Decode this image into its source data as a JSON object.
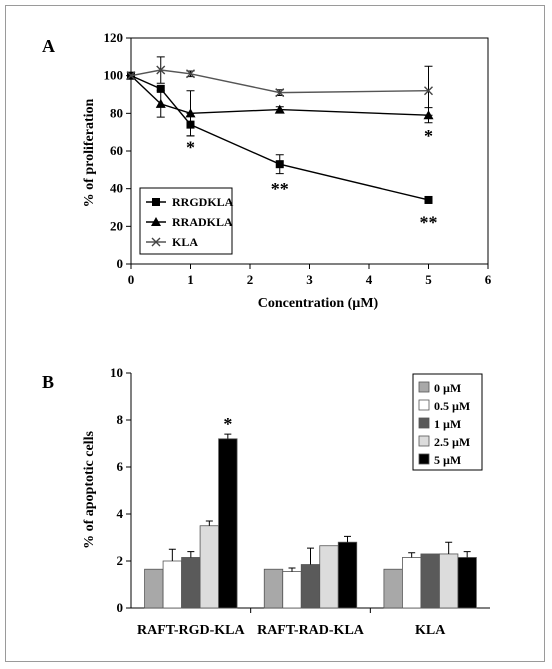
{
  "chart_data": [
    {
      "type": "line",
      "panel": "A",
      "xlabel": "Concentration (µM)",
      "ylabel": "% of proliferation",
      "xlim": [
        0,
        6
      ],
      "ylim": [
        0,
        120
      ],
      "xticks": [
        "0",
        "1",
        "2",
        "3",
        "4",
        "5",
        "6"
      ],
      "yticks": [
        "0",
        "20",
        "40",
        "60",
        "80",
        "100",
        "120"
      ],
      "legend_position": "bottom-left",
      "grid": false,
      "series": [
        {
          "name": "RRGDKLA",
          "marker": "square",
          "x": [
            0,
            0.5,
            1,
            2.5,
            5
          ],
          "y": [
            100,
            93,
            74,
            53,
            34
          ],
          "err": [
            0,
            0,
            6,
            5,
            1.5
          ]
        },
        {
          "name": "RRADKLA",
          "marker": "triangle",
          "x": [
            0,
            0.5,
            1,
            2.5,
            5
          ],
          "y": [
            100,
            85,
            80,
            82,
            79
          ],
          "err": [
            0,
            7,
            12,
            1.5,
            4
          ]
        },
        {
          "name": "KLA",
          "marker": "x",
          "x": [
            0,
            0.5,
            1,
            2.5,
            5
          ],
          "y": [
            100,
            103,
            101,
            91,
            92
          ],
          "err": [
            0,
            7,
            1.5,
            1.5,
            13
          ]
        }
      ],
      "annotations": [
        {
          "text": "*",
          "x": 1,
          "y": 63
        },
        {
          "text": "**",
          "x": 2.5,
          "y": 41
        },
        {
          "text": "*",
          "x": 5,
          "y": 69
        },
        {
          "text": "**",
          "x": 5,
          "y": 23
        }
      ]
    },
    {
      "type": "bar",
      "panel": "B",
      "xlabel": "",
      "ylabel": "%  of apoptotic cells",
      "ylim": [
        0,
        10
      ],
      "yticks": [
        "0",
        "2",
        "4",
        "6",
        "8",
        "10"
      ],
      "categories": [
        "RAFT-RGD-KLA",
        "RAFT-RAD-KLA",
        "KLA"
      ],
      "legend_position": "top-right",
      "grid": false,
      "series": [
        {
          "name": "0 µM",
          "color": "#a8a8a8",
          "values": [
            1.65,
            1.65,
            1.65
          ],
          "err": [
            0,
            0,
            0
          ]
        },
        {
          "name": "0.5 µM",
          "color": "#ffffff",
          "values": [
            2.0,
            1.55,
            2.15
          ],
          "err": [
            0.5,
            0.15,
            0.2
          ]
        },
        {
          "name": "1 µM",
          "color": "#5a5a5a",
          "values": [
            2.15,
            1.85,
            2.3
          ],
          "err": [
            0.25,
            0.7,
            0
          ]
        },
        {
          "name": "2.5 µM",
          "color": "#dcdcdc",
          "values": [
            3.5,
            2.65,
            2.3
          ],
          "err": [
            0.2,
            0,
            0.5
          ]
        },
        {
          "name": "5 µM",
          "color": "#000000",
          "values": [
            7.2,
            2.8,
            2.15
          ],
          "err": [
            0.2,
            0.25,
            0.25
          ]
        }
      ],
      "annotations": [
        {
          "text": "*",
          "category": "RAFT-RGD-KLA",
          "series": "5 µM"
        }
      ]
    }
  ]
}
